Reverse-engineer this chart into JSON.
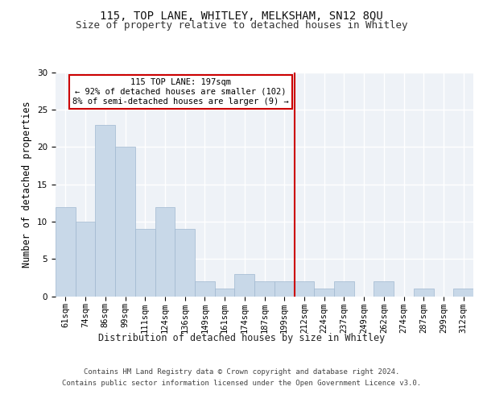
{
  "title_line1": "115, TOP LANE, WHITLEY, MELKSHAM, SN12 8QU",
  "title_line2": "Size of property relative to detached houses in Whitley",
  "xlabel": "Distribution of detached houses by size in Whitley",
  "ylabel": "Number of detached properties",
  "footer_line1": "Contains HM Land Registry data © Crown copyright and database right 2024.",
  "footer_line2": "Contains public sector information licensed under the Open Government Licence v3.0.",
  "categories": [
    "61sqm",
    "74sqm",
    "86sqm",
    "99sqm",
    "111sqm",
    "124sqm",
    "136sqm",
    "149sqm",
    "161sqm",
    "174sqm",
    "187sqm",
    "199sqm",
    "212sqm",
    "224sqm",
    "237sqm",
    "249sqm",
    "262sqm",
    "274sqm",
    "287sqm",
    "299sqm",
    "312sqm"
  ],
  "values": [
    12,
    10,
    23,
    20,
    9,
    12,
    9,
    2,
    1,
    3,
    2,
    2,
    2,
    1,
    2,
    0,
    2,
    0,
    1,
    0,
    1
  ],
  "bar_color": "#c8d8e8",
  "bar_edge_color": "#a0b8d0",
  "vline_index": 11.5,
  "vline_color": "#cc0000",
  "annotation_line1": "115 TOP LANE: 197sqm",
  "annotation_line2": "← 92% of detached houses are smaller (102)",
  "annotation_line3": "8% of semi-detached houses are larger (9) →",
  "annotation_box_color": "#ffffff",
  "annotation_box_edge_color": "#cc0000",
  "ylim": [
    0,
    30
  ],
  "yticks": [
    0,
    5,
    10,
    15,
    20,
    25,
    30
  ],
  "bg_color": "#eef2f7",
  "grid_color": "#ffffff",
  "title_fontsize": 10,
  "subtitle_fontsize": 9,
  "tick_fontsize": 7.5,
  "ylabel_fontsize": 8.5,
  "xlabel_fontsize": 8.5,
  "footer_fontsize": 6.5,
  "ann_fontsize": 7.5
}
